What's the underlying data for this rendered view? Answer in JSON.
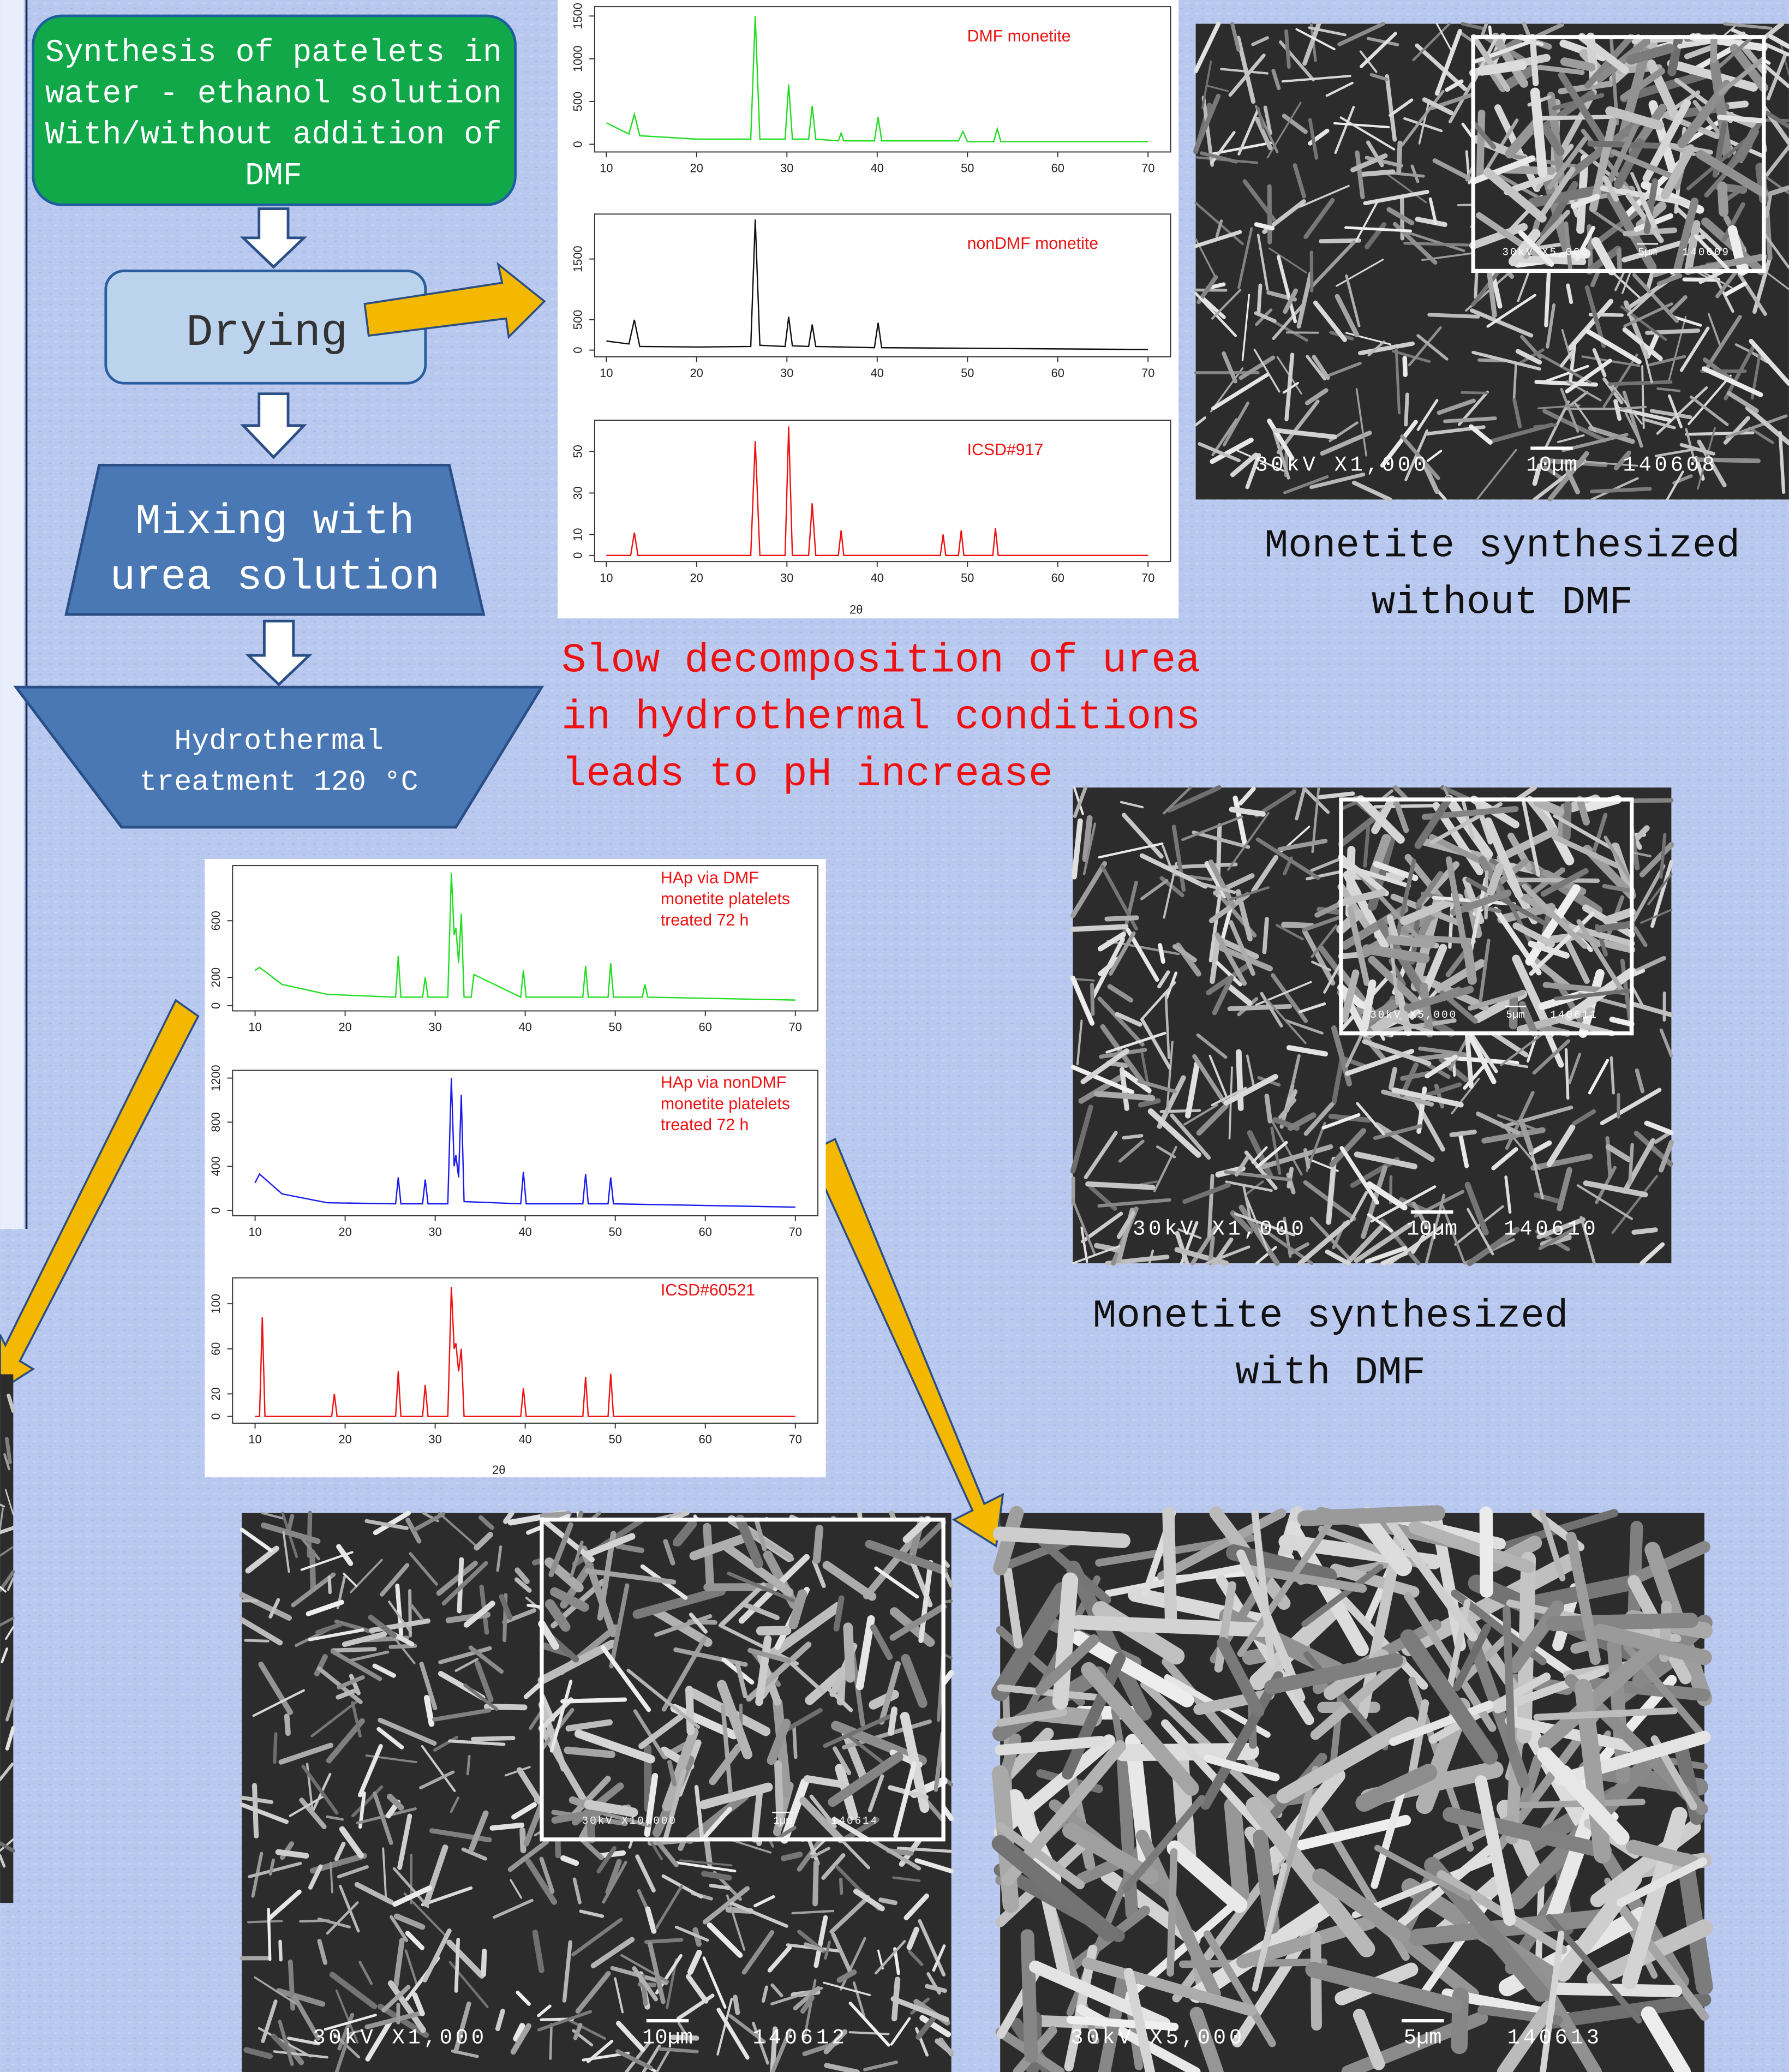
{
  "flowchart": {
    "steps": [
      {
        "lines": [
          "Synthesis of patelets in",
          "water - ethanol solution",
          "With/without addition of",
          "DMF"
        ]
      },
      {
        "lines": [
          "Drying"
        ]
      },
      {
        "lines": [
          "Mixing with",
          "urea solution"
        ]
      },
      {
        "lines": [
          "Hydrothermal",
          "treatment 120 °C"
        ]
      }
    ]
  },
  "note": {
    "lines": [
      "Slow decomposition of urea",
      "in hydrothermal conditions",
      "leads to pH increase"
    ]
  },
  "captions": [
    {
      "lines": [
        "Monetite synthesized",
        "without DMF"
      ]
    },
    {
      "lines": [
        "Monetite synthesized",
        "with DMF"
      ]
    }
  ],
  "xrd": [
    {
      "x_label": "2θ",
      "xlim": [
        8.7,
        72.5
      ],
      "xticks": [
        10,
        20,
        30,
        40,
        50,
        60,
        70
      ],
      "panels": [
        {
          "label": [
            "DMF monetite"
          ],
          "color": "#22dd22",
          "ylim": [
            -90,
            1610
          ],
          "yticks": [
            0,
            500,
            1000,
            1500
          ],
          "x": [
            10,
            12.5,
            13.1,
            13.7,
            20,
            26,
            26.5,
            27,
            29.8,
            30.2,
            30.6,
            32.4,
            32.8,
            33.2,
            35.7,
            36,
            36.3,
            39.7,
            40.1,
            40.5,
            49,
            49.5,
            50,
            52.9,
            53.3,
            53.7,
            70
          ],
          "values": [
            250,
            120,
            350,
            100,
            60,
            60,
            1500,
            60,
            60,
            700,
            60,
            60,
            450,
            60,
            40,
            130,
            40,
            40,
            320,
            40,
            40,
            150,
            30,
            30,
            180,
            30,
            30
          ]
        },
        {
          "label": [
            "nonDMF monetite"
          ],
          "color": "#111111",
          "ylim": [
            -110,
            2240
          ],
          "yticks": [
            0,
            500,
            1500
          ],
          "x": [
            10,
            12.5,
            13.1,
            13.7,
            20,
            26,
            26.5,
            27,
            29.8,
            30.2,
            30.6,
            32.4,
            32.8,
            33.2,
            39.7,
            40.1,
            40.5,
            70
          ],
          "values": [
            150,
            100,
            500,
            60,
            50,
            60,
            2150,
            80,
            60,
            550,
            70,
            60,
            420,
            60,
            40,
            450,
            40,
            10
          ]
        },
        {
          "label": [
            "ICSD#917"
          ],
          "color": "#ee1111",
          "ylim": [
            -3,
            65
          ],
          "yticks": [
            0,
            10,
            30,
            50
          ],
          "x": [
            10,
            12.7,
            13.1,
            13.5,
            26,
            26.5,
            27,
            29.8,
            30.2,
            30.6,
            32.4,
            32.8,
            33.2,
            35.7,
            36,
            36.3,
            47,
            47.3,
            47.6,
            49,
            49.3,
            49.6,
            52.8,
            53.1,
            53.4,
            70
          ],
          "values": [
            0,
            0,
            11,
            0,
            0,
            55,
            0,
            0,
            62,
            0,
            0,
            25,
            0,
            0,
            12,
            0,
            0,
            10,
            0,
            0,
            12,
            0,
            0,
            13,
            0,
            0
          ]
        }
      ]
    },
    {
      "x_label": "2θ",
      "xlim": [
        7.5,
        72.5
      ],
      "xticks": [
        10,
        20,
        30,
        40,
        50,
        60,
        70
      ],
      "panels": [
        {
          "label": [
            "HAp via DMF",
            "monetite platelets",
            "treated 72 h"
          ],
          "color": "#22dd22",
          "ylim": [
            -37,
            990
          ],
          "yticks": [
            0,
            200,
            600
          ],
          "x": [
            10,
            10.5,
            13,
            18,
            25.6,
            25.9,
            26.2,
            28.6,
            28.9,
            29.2,
            31.4,
            31.8,
            32.1,
            32.3,
            32.6,
            32.9,
            33.2,
            34,
            34.3,
            39.5,
            39.8,
            40.1,
            46.4,
            46.7,
            47,
            49.2,
            49.5,
            49.8,
            53,
            53.3,
            53.6,
            70
          ],
          "values": [
            250,
            270,
            150,
            80,
            60,
            350,
            60,
            60,
            200,
            60,
            60,
            940,
            500,
            550,
            300,
            650,
            60,
            60,
            220,
            60,
            250,
            60,
            60,
            280,
            60,
            60,
            300,
            60,
            60,
            150,
            60,
            40
          ]
        },
        {
          "label": [
            "HAp via nonDMF",
            "monetite platelets",
            "treated 72 h"
          ],
          "color": "#1a1aee",
          "ylim": [
            -48,
            1270
          ],
          "yticks": [
            0,
            400,
            800,
            1200
          ],
          "x": [
            10,
            10.5,
            13,
            18,
            25.6,
            25.9,
            26.2,
            28.6,
            28.9,
            29.2,
            31.4,
            31.8,
            32.1,
            32.3,
            32.6,
            32.9,
            33.2,
            39.5,
            39.8,
            40.1,
            46.4,
            46.7,
            47,
            49.2,
            49.5,
            49.8,
            70
          ],
          "values": [
            250,
            330,
            150,
            70,
            60,
            300,
            60,
            60,
            280,
            60,
            60,
            1200,
            400,
            500,
            300,
            1050,
            80,
            60,
            350,
            60,
            60,
            330,
            60,
            60,
            300,
            60,
            30
          ]
        },
        {
          "label": [
            "ICSD#60521"
          ],
          "color": "#ee1111",
          "ylim": [
            -6,
            123
          ],
          "yticks": [
            0,
            20,
            60,
            100
          ],
          "x": [
            10,
            10.5,
            10.8,
            11.1,
            18.5,
            18.8,
            19.1,
            25.6,
            25.9,
            26.2,
            28.6,
            28.9,
            29.2,
            31.4,
            31.8,
            32.1,
            32.3,
            32.6,
            32.9,
            33.2,
            39.5,
            39.8,
            40.1,
            46.4,
            46.7,
            47,
            49.2,
            49.5,
            49.8,
            70
          ],
          "values": [
            0,
            0,
            88,
            0,
            0,
            20,
            0,
            0,
            40,
            0,
            0,
            28,
            0,
            0,
            115,
            60,
            65,
            40,
            60,
            0,
            0,
            25,
            0,
            0,
            35,
            0,
            0,
            38,
            0,
            0
          ]
        }
      ]
    }
  ],
  "sem_images": [
    {
      "magnification": "30kV X1,000",
      "scale": "10µm",
      "id": "140608",
      "inset": {
        "magnification": "30kV X5,000",
        "scale": "5µm",
        "id": "140609"
      }
    },
    {
      "magnification": "30kV X1,000",
      "scale": "10µm",
      "id": "140610",
      "inset": {
        "magnification": "30kV X5,000",
        "scale": "5µm",
        "id": "140611"
      }
    },
    {
      "magnification": "30kV X1,000",
      "scale": "10µm",
      "id": "140612",
      "inset": {
        "magnification": "30kV X10,000",
        "scale": "1µm",
        "id": "140614"
      }
    },
    {
      "magnification": "30kV X5,000",
      "scale": "5µm",
      "id": "140613"
    }
  ]
}
